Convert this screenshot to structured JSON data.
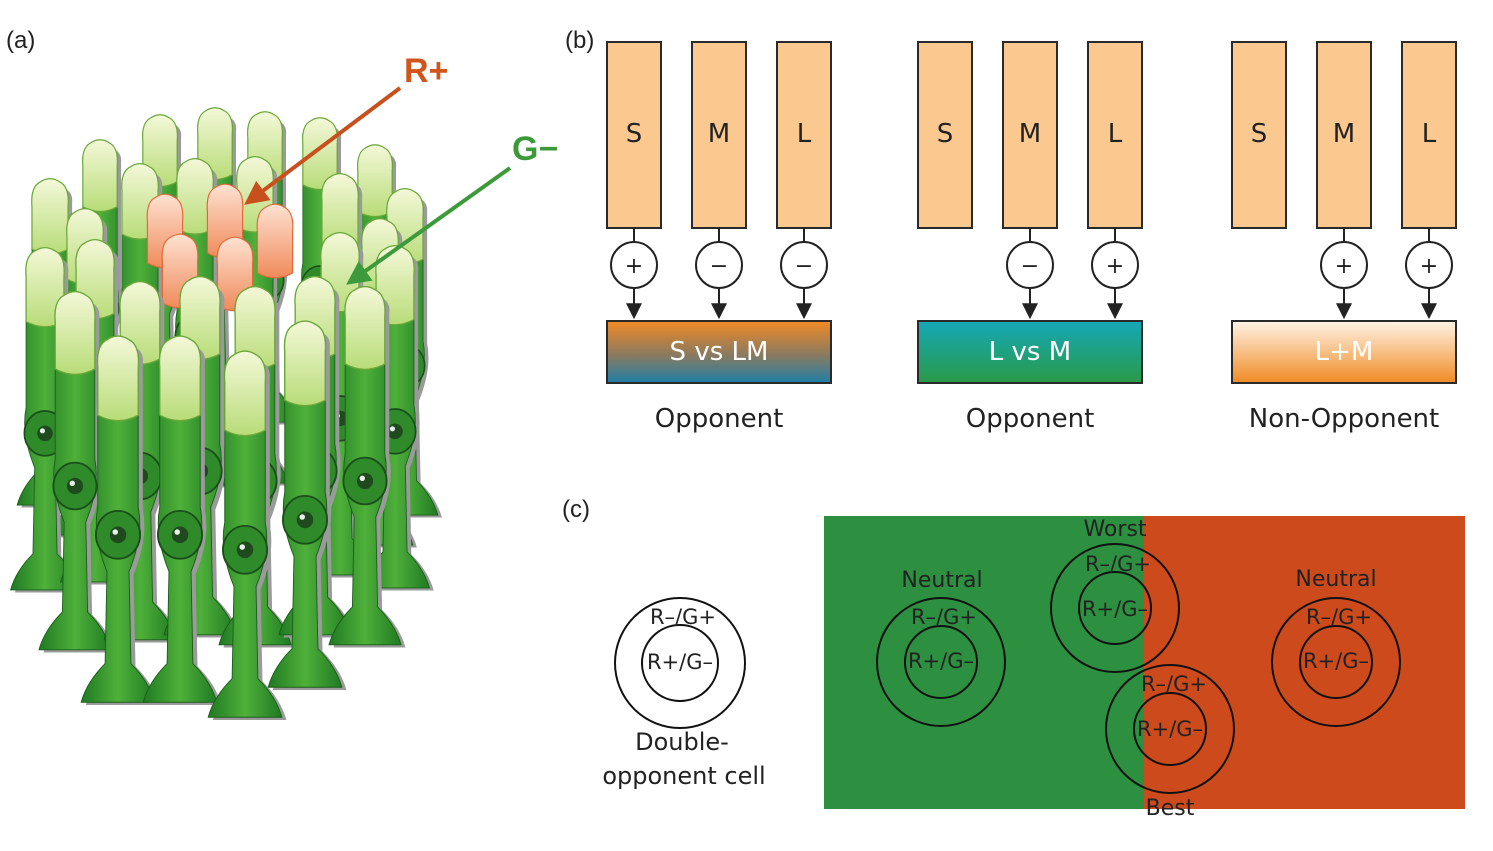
{
  "panel_labels": {
    "a": "(a)",
    "b": "(b)",
    "c": "(c)"
  },
  "panel_a": {
    "red_label": "R+",
    "green_label": "G−"
  },
  "panel_b": {
    "channels": [
      {
        "cones": [
          {
            "letter": "S",
            "sign": "+"
          },
          {
            "letter": "M",
            "sign": "−"
          },
          {
            "letter": "L",
            "sign": "−"
          }
        ],
        "output": "S vs LM",
        "caption": "Opponent"
      },
      {
        "cones": [
          {
            "letter": "S",
            "sign": ""
          },
          {
            "letter": "M",
            "sign": "−"
          },
          {
            "letter": "L",
            "sign": "+"
          }
        ],
        "output": "L vs M",
        "caption": "Opponent"
      },
      {
        "cones": [
          {
            "letter": "S",
            "sign": ""
          },
          {
            "letter": "M",
            "sign": "+"
          },
          {
            "letter": "L",
            "sign": "+"
          }
        ],
        "output": "L+M",
        "caption": "Non-Opponent"
      }
    ],
    "colors": {
      "cone_fill": "#fbc98f",
      "cone_stroke": "#2a2a2a"
    }
  },
  "panel_c": {
    "cell_outer": "R–/G+",
    "cell_inner": "R+/G–",
    "cell_caption_1": "Double-",
    "cell_caption_2": "opponent cell",
    "neutral_left": "Neutral",
    "neutral_right": "Neutral",
    "worst": "Worst",
    "best": "Best",
    "colors": {
      "green": "#2c9040",
      "red": "#cc4a1c"
    }
  }
}
